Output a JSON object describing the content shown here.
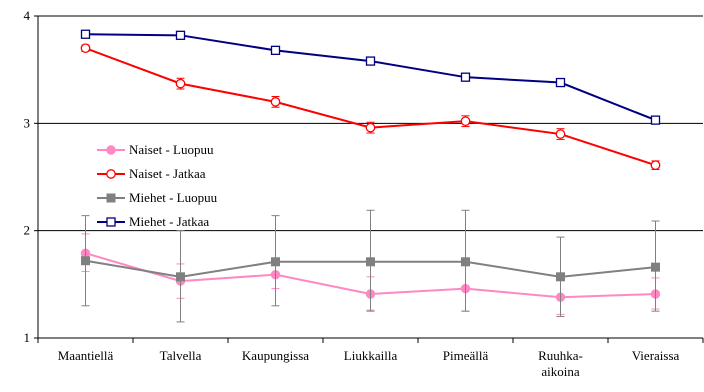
{
  "chart_data": {
    "type": "line",
    "categories": [
      "Maantiellä",
      "Talvella",
      "Kaupungissa",
      "Liukkailla",
      "Pimeällä",
      "Ruuhka-aikoina",
      "Vieraissa"
    ],
    "category_lines": [
      [
        "Maantiellä"
      ],
      [
        "Talvella"
      ],
      [
        "Kaupungissa"
      ],
      [
        "Liukkailla"
      ],
      [
        "Pimeällä"
      ],
      [
        "Ruuhka-",
        "aikoina"
      ],
      [
        "Vieraissa"
      ]
    ],
    "ylim": [
      1,
      4
    ],
    "yticks": [
      "1",
      "2",
      "3",
      "4"
    ],
    "gridlines_y": [
      2,
      3,
      4
    ],
    "legend_position": "left-middle",
    "series": [
      {
        "name": "Naiset - Luopuu",
        "color": "#ff88c4",
        "marker": "filled-circle",
        "values": [
          1.79,
          1.53,
          1.59,
          1.41,
          1.46,
          1.38,
          1.41
        ],
        "err_low": [
          1.62,
          1.37,
          1.46,
          1.26,
          1.25,
          1.22,
          1.27
        ],
        "err_high": [
          1.97,
          1.69,
          1.73,
          1.57,
          1.68,
          1.55,
          1.56
        ]
      },
      {
        "name": "Naiset - Jatkaa",
        "color": "#ff0000",
        "marker": "open-circle",
        "values": [
          3.7,
          3.37,
          3.2,
          2.96,
          3.02,
          2.9,
          2.61
        ],
        "err_low": [
          3.67,
          3.32,
          3.15,
          2.91,
          2.97,
          2.85,
          2.57
        ],
        "err_high": [
          3.73,
          3.42,
          3.25,
          3.01,
          3.07,
          2.95,
          2.65
        ]
      },
      {
        "name": "Miehet - Luopuu",
        "color": "#808080",
        "marker": "filled-square",
        "values": [
          1.72,
          1.57,
          1.71,
          1.71,
          1.71,
          1.57,
          1.66
        ],
        "err_low": [
          1.3,
          1.15,
          1.3,
          1.25,
          1.25,
          1.2,
          1.25
        ],
        "err_high": [
          2.14,
          2.0,
          2.14,
          2.19,
          2.19,
          1.94,
          2.09
        ]
      },
      {
        "name": "Miehet - Jatkaa",
        "color": "#000080",
        "marker": "open-square",
        "values": [
          3.83,
          3.82,
          3.68,
          3.58,
          3.43,
          3.38,
          3.03
        ],
        "err_low": [
          3.81,
          3.8,
          3.66,
          3.56,
          3.41,
          3.36,
          3.01
        ],
        "err_high": [
          3.85,
          3.84,
          3.7,
          3.6,
          3.45,
          3.4,
          3.05
        ]
      }
    ]
  }
}
